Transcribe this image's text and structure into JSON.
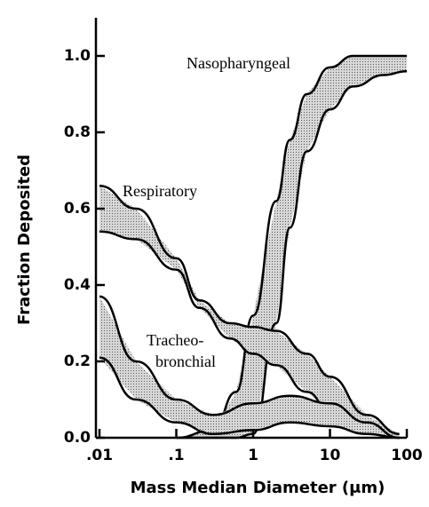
{
  "chart_data": {
    "type": "band",
    "x_label": "Mass Median Diameter (μm)",
    "y_label": "Fraction Deposited",
    "log_x": true,
    "grid": false,
    "xlim": [
      0.01,
      100
    ],
    "ylim": [
      0,
      1.1
    ],
    "xticks": [
      {
        "value": 0.01,
        "label": ".01"
      },
      {
        "value": 0.1,
        "label": ".1"
      },
      1,
      10,
      100
    ],
    "yticks": [
      {
        "value": 0,
        "label": "0.0"
      },
      0.2,
      0.4,
      0.6,
      0.8,
      {
        "value": 1,
        "label": "1.0"
      }
    ],
    "series": [
      {
        "name": "Nasopharyngeal",
        "color": "#000000",
        "x": [
          0.1,
          0.3,
          0.6,
          1,
          2,
          3,
          5,
          10,
          20,
          50,
          100
        ],
        "upper": [
          0,
          0.02,
          0.12,
          0.32,
          0.62,
          0.78,
          0.9,
          0.97,
          1.0,
          1.0,
          1.0
        ],
        "lower": [
          0,
          0,
          0,
          0.01,
          0.3,
          0.55,
          0.75,
          0.86,
          0.92,
          0.95,
          0.96
        ]
      },
      {
        "name": "Respiratory",
        "color": "#000000",
        "x": [
          0.01,
          0.03,
          0.1,
          0.2,
          0.5,
          1,
          2,
          5,
          10,
          30,
          80
        ],
        "upper": [
          0.66,
          0.6,
          0.47,
          0.36,
          0.3,
          0.29,
          0.28,
          0.22,
          0.16,
          0.06,
          0.01
        ],
        "lower": [
          0.54,
          0.52,
          0.44,
          0.34,
          0.26,
          0.22,
          0.19,
          0.12,
          0.07,
          0.02,
          0
        ]
      },
      {
        "name": "Tracheo-bronchial",
        "color": "#000000",
        "x": [
          0.01,
          0.03,
          0.1,
          0.3,
          1,
          3,
          10,
          30,
          80
        ],
        "upper": [
          0.37,
          0.2,
          0.1,
          0.06,
          0.09,
          0.11,
          0.09,
          0.04,
          0
        ],
        "lower": [
          0.21,
          0.1,
          0.04,
          0.01,
          0.02,
          0.04,
          0.03,
          0.01,
          0
        ]
      }
    ],
    "annotations": [
      [
        "Nasopharyngeal"
      ],
      [
        "Respiratory"
      ],
      [
        "Tracheo-",
        "bronchial"
      ]
    ]
  }
}
